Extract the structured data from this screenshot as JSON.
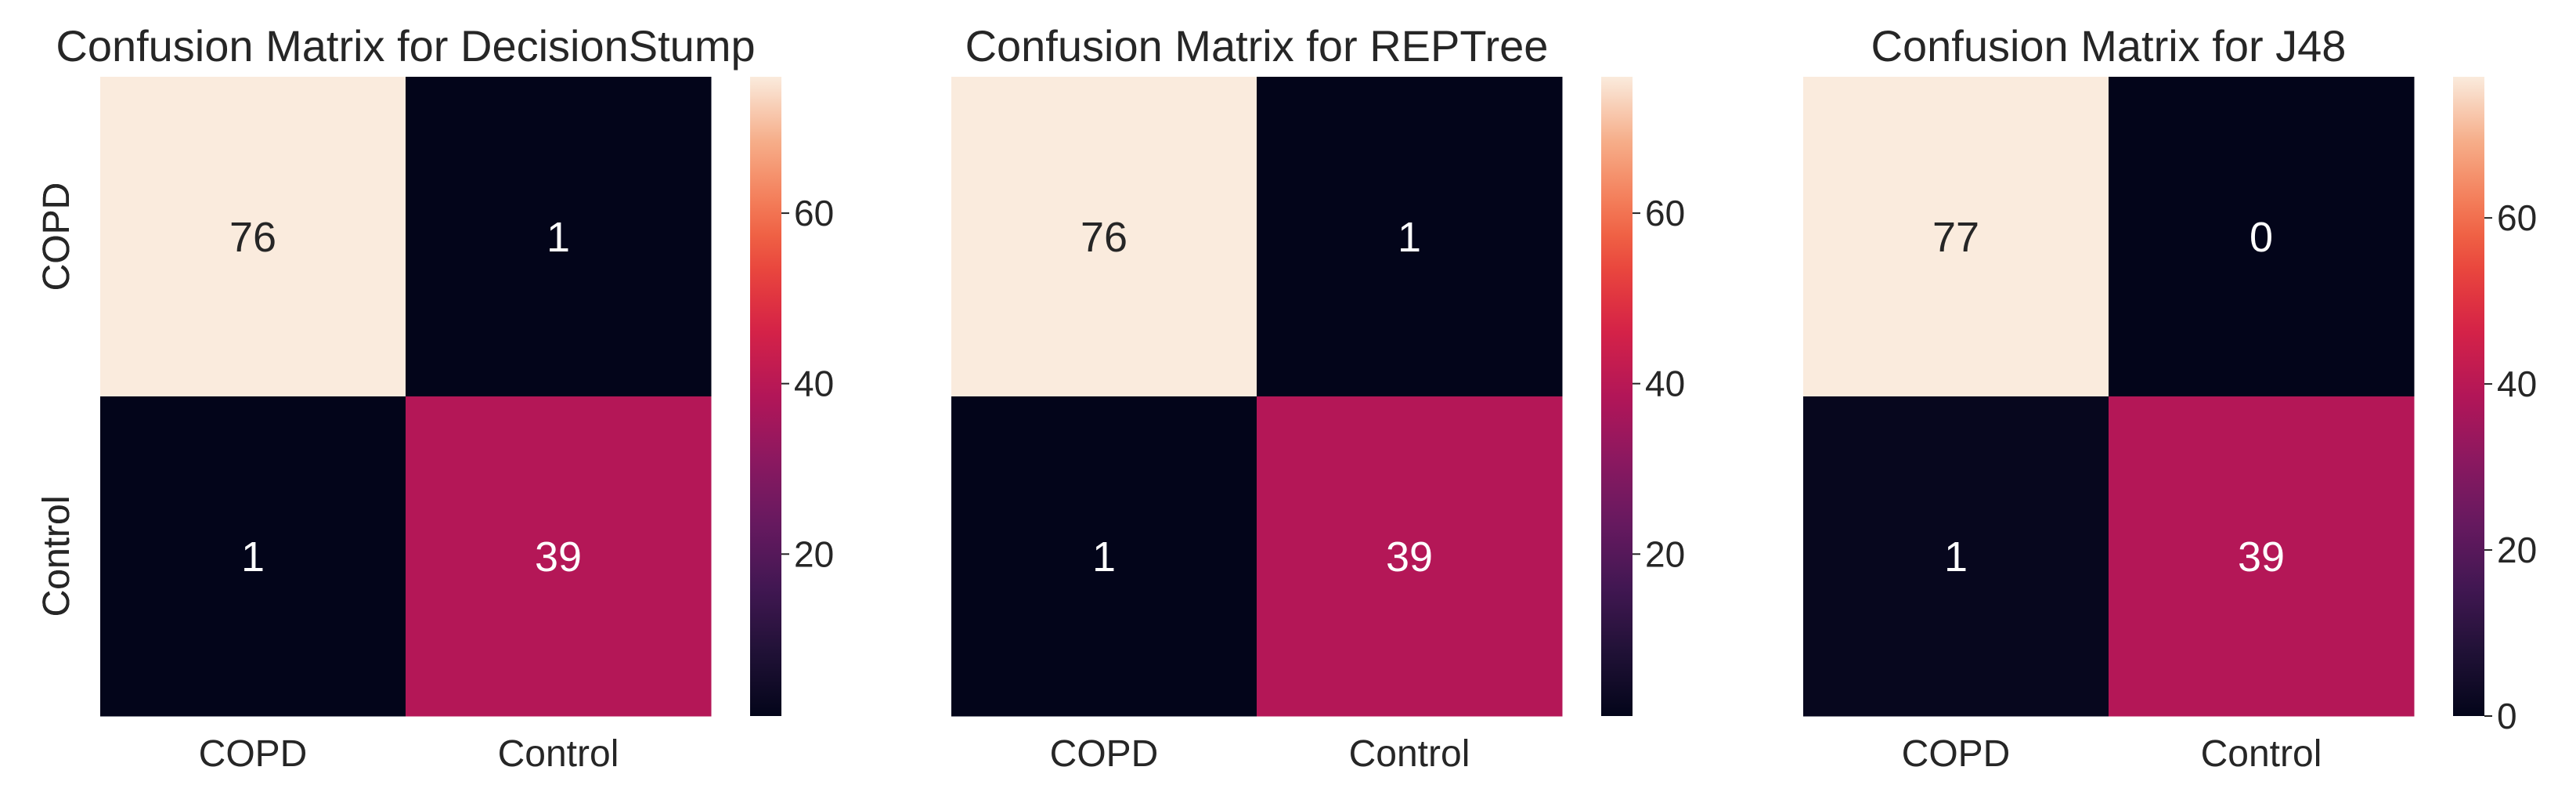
{
  "chart_data": [
    {
      "type": "heatmap",
      "title": "Confusion Matrix for DecisionStump",
      "x_categories": [
        "COPD",
        "Control"
      ],
      "y_categories": [
        "COPD",
        "Control"
      ],
      "values": [
        [
          76,
          1
        ],
        [
          1,
          39
        ]
      ],
      "colorbar": {
        "range": [
          1,
          76
        ],
        "ticks": [
          20,
          40,
          60
        ],
        "colormap": "rocket"
      }
    },
    {
      "type": "heatmap",
      "title": "Confusion Matrix for REPTree",
      "x_categories": [
        "COPD",
        "Control"
      ],
      "y_categories": [
        "COPD",
        "Control"
      ],
      "values": [
        [
          76,
          1
        ],
        [
          1,
          39
        ]
      ],
      "colorbar": {
        "range": [
          1,
          76
        ],
        "ticks": [
          20,
          40,
          60
        ],
        "colormap": "rocket"
      }
    },
    {
      "type": "heatmap",
      "title": "Confusion Matrix for J48",
      "x_categories": [
        "COPD",
        "Control"
      ],
      "y_categories": [
        "COPD",
        "Control"
      ],
      "values": [
        [
          77,
          0
        ],
        [
          1,
          39
        ]
      ],
      "colorbar": {
        "range": [
          0,
          77
        ],
        "ticks": [
          0,
          20,
          40,
          60
        ],
        "colormap": "rocket"
      }
    }
  ],
  "colors": {
    "low": "#03051a",
    "high": "#faebdd",
    "text": "#262626"
  }
}
